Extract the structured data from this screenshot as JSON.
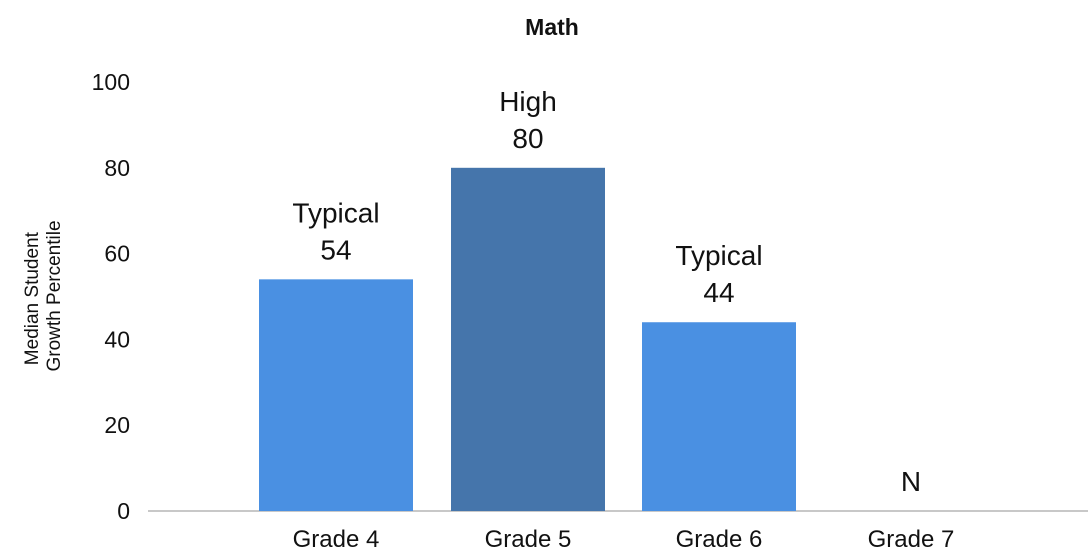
{
  "chart_data": {
    "type": "bar",
    "title": "Math",
    "ylabel": [
      "Median Student",
      "Growth Percentile"
    ],
    "xlabel": "",
    "ylim": [
      0,
      100
    ],
    "yticks": [
      0,
      20,
      40,
      60,
      80,
      100
    ],
    "categories": [
      "Grade 4",
      "Grade 5",
      "Grade 6",
      "Grade 7"
    ],
    "values": [
      54,
      80,
      44,
      null
    ],
    "bar_labels": [
      [
        "Typical",
        "54"
      ],
      [
        "High",
        "80"
      ],
      [
        "Typical",
        "44"
      ],
      [
        "N"
      ]
    ],
    "bar_colors": [
      "#4a90e2",
      "#4575ab",
      "#4a90e2",
      "#4a90e2"
    ],
    "grid": false
  },
  "colors": {
    "typical": "#4a90e2",
    "high": "#4575ab",
    "axis": "#c8c8c8"
  }
}
